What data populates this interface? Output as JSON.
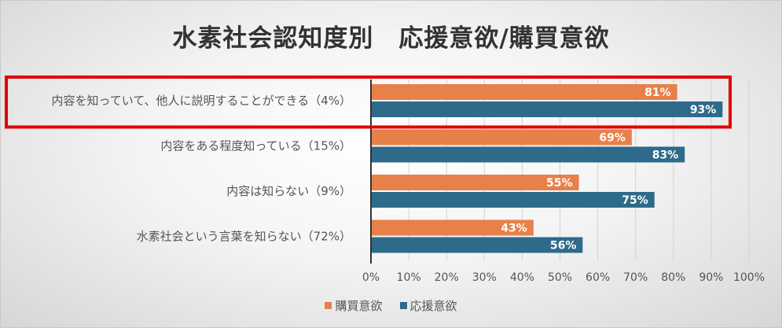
{
  "chart_data": {
    "type": "bar",
    "orientation": "horizontal",
    "title": "水素社会認知度別　応援意欲/購買意欲",
    "categories": [
      "内容を知っていて、他人に説明することができる（4%）",
      "内容をある程度知っている（15%）",
      "内容は知らない（9%）",
      "水素社会という言葉を知らない（72%）"
    ],
    "series": [
      {
        "name": "購買意欲",
        "color": "#e8804a",
        "values": [
          81,
          69,
          55,
          43
        ],
        "labels": [
          "81%",
          "69%",
          "55%",
          "43%"
        ]
      },
      {
        "name": "応援意欲",
        "color": "#2e6b8a",
        "values": [
          93,
          83,
          75,
          56
        ],
        "labels": [
          "93%",
          "83%",
          "75%",
          "56%"
        ]
      }
    ],
    "xlim": [
      0,
      100
    ],
    "xticks": [
      "0%",
      "10%",
      "20%",
      "30%",
      "40%",
      "50%",
      "60%",
      "70%",
      "80%",
      "90%",
      "100%"
    ],
    "grid": "vertical",
    "legend_position": "bottom",
    "highlight_category": 0,
    "highlight_color": "#e00000"
  }
}
